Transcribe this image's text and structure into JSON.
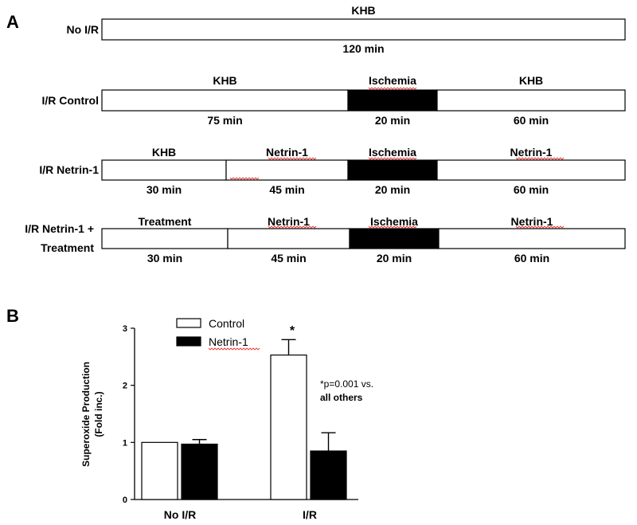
{
  "panel_a_label": "A",
  "panel_b_label": "B",
  "protocols": [
    {
      "label_lines": [
        "No I/R"
      ],
      "segments": [
        {
          "top": "KHB",
          "bottom": "120 min",
          "dark": false
        }
      ]
    },
    {
      "label_lines": [
        "I/R Control"
      ],
      "segments": [
        {
          "top": "KHB",
          "bottom": "75 min",
          "dark": false
        },
        {
          "top": "Ischemia",
          "bottom": "20 min",
          "dark": true
        },
        {
          "top": "KHB",
          "bottom": "60 min",
          "dark": false
        }
      ]
    },
    {
      "label_lines": [
        "I/R Netrin-1"
      ],
      "segments": [
        {
          "top": "KHB",
          "bottom": "30 min",
          "dark": false
        },
        {
          "top": "Netrin-1",
          "bottom": "45 min",
          "dark": false
        },
        {
          "top": "Ischemia",
          "bottom": "20 min",
          "dark": true
        },
        {
          "top": "Netrin-1",
          "bottom": "60 min",
          "dark": false
        }
      ]
    },
    {
      "label_lines": [
        "I/R Netrin-1 +",
        "Treatment"
      ],
      "segments": [
        {
          "top": "Treatment",
          "bottom": "30 min",
          "dark": false
        },
        {
          "top": "Netrin-1",
          "bottom": "45 min",
          "dark": false
        },
        {
          "top": "Ischemia",
          "bottom": "20 min",
          "dark": true
        },
        {
          "top": "Netrin-1",
          "bottom": "60 min",
          "dark": false
        }
      ]
    }
  ],
  "chart_data": {
    "type": "bar",
    "categories": [
      "No I/R",
      "I/R"
    ],
    "series": [
      {
        "name": "Control",
        "values": [
          1.0,
          2.53
        ],
        "errors": [
          0,
          0.27
        ],
        "color": "#ffffff"
      },
      {
        "name": "Netrin-1",
        "values": [
          0.97,
          0.85
        ],
        "errors": [
          0.08,
          0.32
        ],
        "color": "#000000"
      }
    ],
    "ylabel_lines": [
      "Superoxide Production",
      "(Fold inc.)"
    ],
    "ylim": [
      0,
      3
    ],
    "yticks": [
      "0",
      "1",
      "2",
      "3"
    ],
    "legend_position": "top-left",
    "significance_marker": "*",
    "annotation_lines": [
      "*p=0.001 vs.",
      "all others"
    ]
  }
}
